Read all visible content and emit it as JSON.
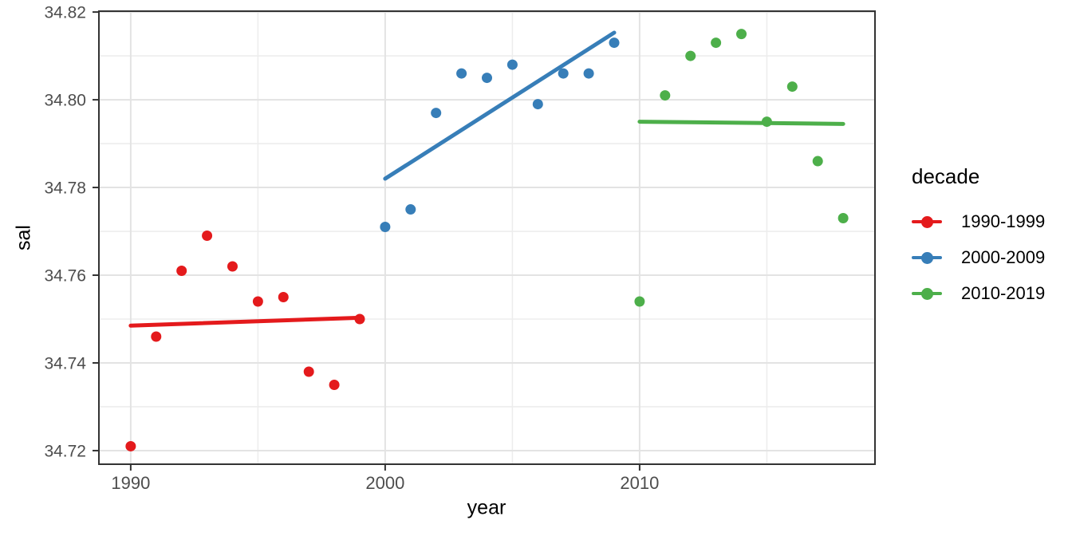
{
  "figure": {
    "x_axis_title": "year",
    "y_axis_title": "sal"
  },
  "legend": {
    "title": "decade",
    "entries": [
      {
        "label": "1990-1999",
        "color": "#E41A1C"
      },
      {
        "label": "2000-2009",
        "color": "#377EB8"
      },
      {
        "label": "2010-2019",
        "color": "#4DAF4A"
      }
    ]
  },
  "chart_data": {
    "type": "scatter",
    "title": "",
    "xlabel": "year",
    "ylabel": "sal",
    "legend_title": "decade",
    "legend_position": "right",
    "grid": true,
    "x_domain": [
      1988.75,
      2019.25
    ],
    "y_domain": [
      34.7169,
      34.8202
    ],
    "x_major_ticks": [
      {
        "value": 1990,
        "label": "1990"
      },
      {
        "value": 2000,
        "label": "2000"
      },
      {
        "value": 2010,
        "label": "2010"
      }
    ],
    "x_minor_ticks": [
      1995,
      2005,
      2015
    ],
    "y_major_ticks": [
      {
        "value": 34.72,
        "label": "34.72"
      },
      {
        "value": 34.74,
        "label": "34.74"
      },
      {
        "value": 34.76,
        "label": "34.76"
      },
      {
        "value": 34.78,
        "label": "34.78"
      },
      {
        "value": 34.8,
        "label": "34.80"
      },
      {
        "value": 34.82,
        "label": "34.82"
      }
    ],
    "y_minor_ticks": [
      34.73,
      34.75,
      34.77,
      34.79,
      34.81
    ],
    "series": [
      {
        "name": "1990-1999",
        "color": "#E41A1C",
        "x": [
          1990,
          1991,
          1992,
          1993,
          1994,
          1995,
          1996,
          1997,
          1998,
          1999
        ],
        "y": [
          34.721,
          34.746,
          34.761,
          34.769,
          34.762,
          34.754,
          34.755,
          34.738,
          34.735,
          34.75
        ],
        "trend_line": {
          "x": [
            1990,
            1999
          ],
          "y": [
            34.7485,
            34.7503
          ]
        }
      },
      {
        "name": "2000-2009",
        "color": "#377EB8",
        "x": [
          2000,
          2001,
          2002,
          2003,
          2004,
          2005,
          2006,
          2007,
          2008,
          2009
        ],
        "y": [
          34.771,
          34.775,
          34.797,
          34.806,
          34.805,
          34.808,
          34.799,
          34.806,
          34.806,
          34.813
        ],
        "trend_line": {
          "x": [
            2000,
            2009
          ],
          "y": [
            34.782,
            34.8153
          ]
        }
      },
      {
        "name": "2010-2019",
        "color": "#4DAF4A",
        "x": [
          2010,
          2011,
          2012,
          2013,
          2014,
          2015,
          2016,
          2017,
          2018
        ],
        "y": [
          34.754,
          34.801,
          34.81,
          34.813,
          34.815,
          34.795,
          34.803,
          34.786,
          34.773
        ],
        "trend_line": {
          "x": [
            2010,
            2018
          ],
          "y": [
            34.795,
            34.7945
          ]
        }
      }
    ]
  }
}
